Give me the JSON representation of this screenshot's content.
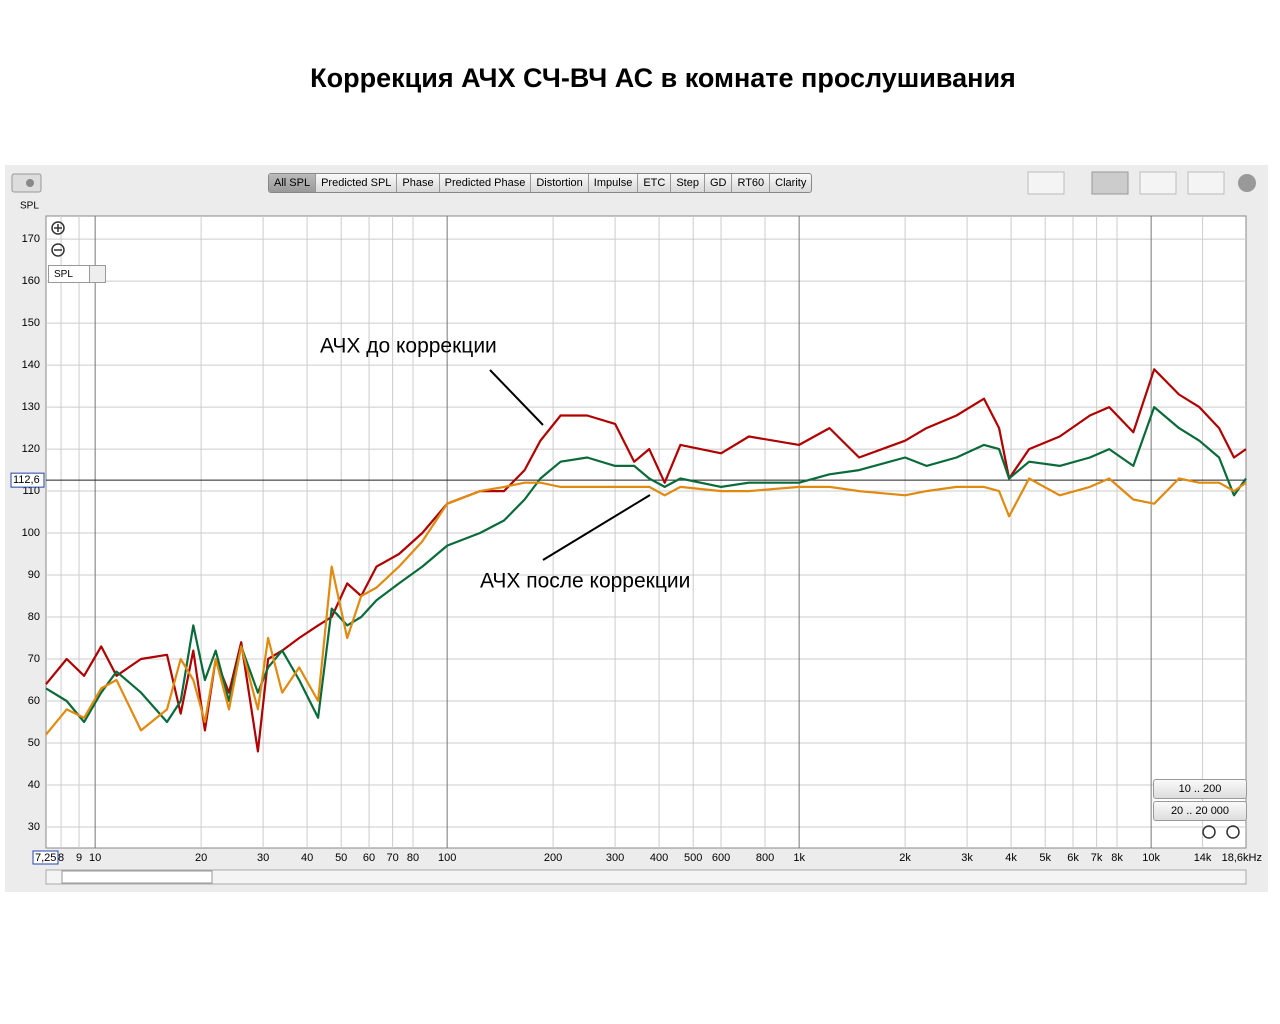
{
  "chart_data": {
    "type": "line",
    "title": "Коррекция АЧХ  СЧ-ВЧ АС в комнате прослушивания",
    "y_label": "SPL",
    "x_log": true,
    "grid": true,
    "xlim": [
      7.25,
      18600
    ],
    "ylim": [
      25,
      175.5
    ],
    "yticks": [
      30,
      40,
      50,
      60,
      70,
      80,
      90,
      100,
      110,
      120,
      130,
      140,
      150,
      160,
      170
    ],
    "xticks": [
      {
        "value": 7.25,
        "label": "7,25"
      },
      8,
      9,
      10,
      20,
      30,
      40,
      50,
      60,
      70,
      80,
      100,
      200,
      300,
      400,
      500,
      600,
      800,
      {
        "value": 1000,
        "label": "1k"
      },
      {
        "value": 2000,
        "label": "2k"
      },
      {
        "value": 3000,
        "label": "3k"
      },
      {
        "value": 4000,
        "label": "4k"
      },
      {
        "value": 5000,
        "label": "5k"
      },
      {
        "value": 6000,
        "label": "6k"
      },
      {
        "value": 7000,
        "label": "7k"
      },
      {
        "value": 8000,
        "label": "8k"
      },
      {
        "value": 10000,
        "label": "10k"
      },
      {
        "value": 14000,
        "label": "14k"
      },
      {
        "value": 18600,
        "label": "18,6kHz"
      }
    ],
    "cursor": {
      "value": 112.6,
      "label": "112,6"
    },
    "x": [
      7.25,
      8.3,
      9.3,
      10.4,
      11.5,
      13.5,
      16,
      17.5,
      19,
      20.5,
      22,
      24,
      26,
      29,
      31,
      34,
      38,
      43,
      47,
      52,
      57,
      63,
      73,
      85,
      100,
      124,
      145,
      166,
      184,
      210,
      250,
      300,
      340,
      375,
      415,
      460,
      600,
      720,
      1000,
      1220,
      1480,
      2000,
      2300,
      2800,
      3350,
      3700,
      3950,
      4500,
      5500,
      6700,
      7600,
      8900,
      10200,
      12000,
      13700,
      15600,
      17200,
      18600
    ],
    "series": [
      {
        "color": "#b00000",
        "values": [
          64,
          70,
          66,
          73,
          66,
          70,
          71,
          57,
          72,
          53,
          70,
          62,
          74,
          48,
          70,
          72,
          75,
          78,
          80,
          88,
          85,
          92,
          95,
          100,
          107,
          110,
          110,
          115,
          122,
          128,
          128,
          126,
          117,
          120,
          112,
          121,
          119,
          123,
          121,
          125,
          118,
          122,
          125,
          128,
          132,
          125,
          113,
          120,
          123,
          128,
          130,
          124,
          139,
          133,
          130,
          125,
          118,
          120
        ]
      },
      {
        "color": "#0a6b3a",
        "values": [
          63,
          60,
          55,
          62,
          67,
          62,
          55,
          60,
          78,
          65,
          72,
          60,
          73,
          62,
          68,
          72,
          65,
          56,
          82,
          78,
          80,
          84,
          88,
          92,
          97,
          100,
          103,
          108,
          113,
          117,
          118,
          116,
          116,
          113,
          111,
          113,
          111,
          112,
          112,
          114,
          115,
          118,
          116,
          118,
          121,
          120,
          113,
          117,
          116,
          118,
          120,
          116,
          130,
          125,
          122,
          118,
          109,
          113
        ]
      },
      {
        "color": "#e08a10",
        "values": [
          52,
          58,
          56,
          63,
          65,
          53,
          58,
          70,
          65,
          55,
          70,
          58,
          73,
          58,
          75,
          62,
          68,
          60,
          92,
          75,
          85,
          87,
          92,
          98,
          107,
          110,
          111,
          112,
          112,
          111,
          111,
          111,
          111,
          111,
          109,
          111,
          110,
          110,
          111,
          111,
          110,
          109,
          110,
          111,
          111,
          110,
          104,
          113,
          109,
          111,
          113,
          108,
          107,
          113,
          112,
          112,
          110,
          112
        ]
      }
    ],
    "annotations": [
      "АЧХ до коррекции",
      "АЧХ после коррекции"
    ]
  },
  "toolbar": {
    "tabs": [
      "All SPL",
      "Predicted SPL",
      "Phase",
      "Predicted Phase",
      "Distortion",
      "Impulse",
      "ETC",
      "Step",
      "GD",
      "RT60",
      "Clarity"
    ],
    "active": 0
  },
  "dropdown": "SPL",
  "range_buttons": [
    "10 .. 200",
    "20 .. 20 000"
  ]
}
